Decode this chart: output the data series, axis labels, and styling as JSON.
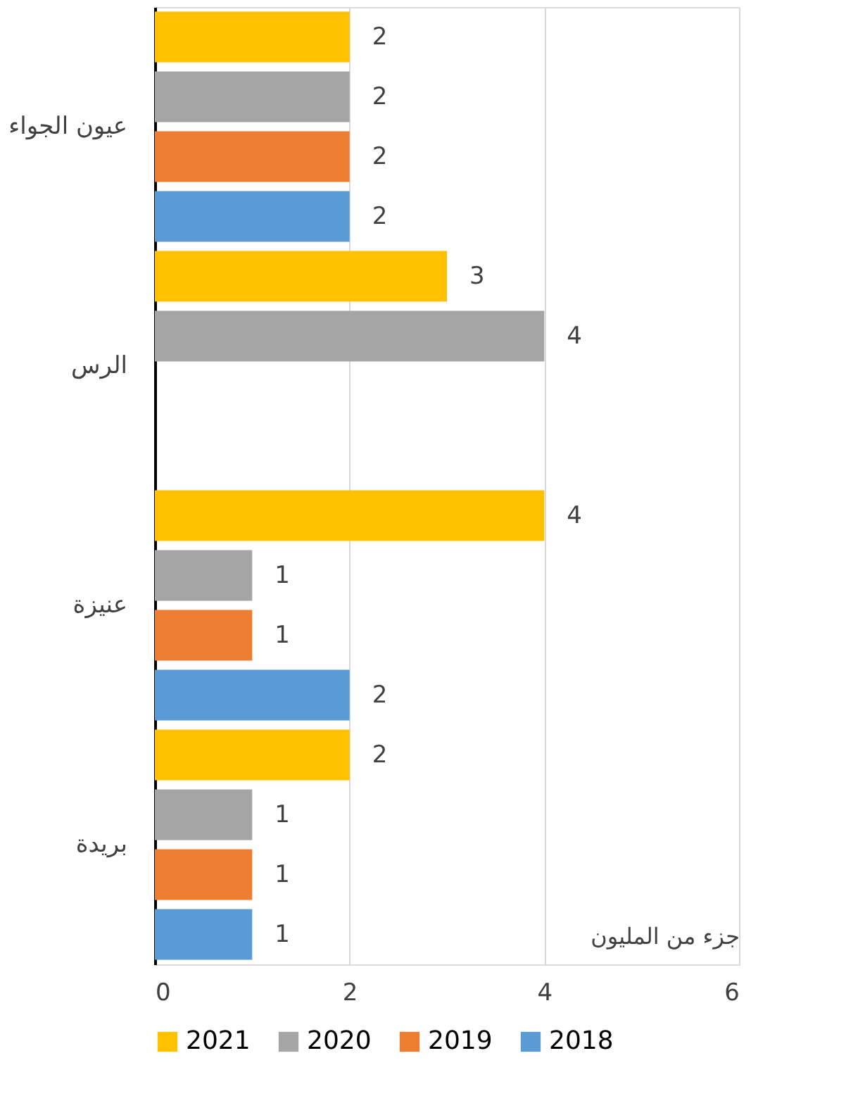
{
  "chart_data": {
    "type": "bar",
    "orientation": "horizontal",
    "categories": [
      "عيون الجواء",
      "الرس",
      "عنيزة",
      "بريدة"
    ],
    "series": [
      {
        "name": "2021",
        "color": "#ffc000",
        "values": [
          2,
          3,
          4,
          2
        ]
      },
      {
        "name": "2020",
        "color": "#a5a5a5",
        "values": [
          2,
          4,
          1,
          1
        ]
      },
      {
        "name": "2019",
        "color": "#ed7d31",
        "values": [
          2,
          null,
          1,
          1
        ]
      },
      {
        "name": "2018",
        "color": "#5b9bd5",
        "values": [
          2,
          null,
          2,
          1
        ]
      }
    ],
    "xlabel": "جزء من المليون",
    "xlim": [
      0,
      6
    ],
    "xticks": [
      0,
      2,
      4,
      6
    ],
    "grid": "x",
    "legend": "bottom",
    "data_labels": true
  }
}
